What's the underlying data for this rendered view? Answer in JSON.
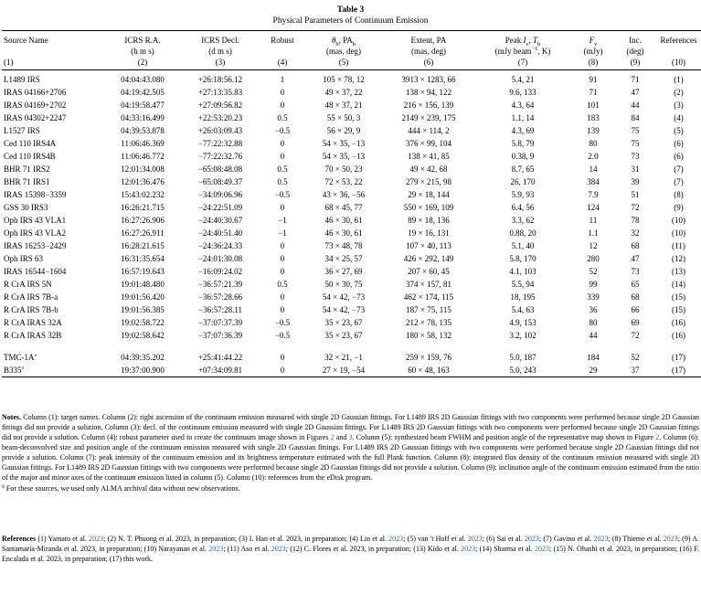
{
  "colors": {
    "link": "#2a66b0",
    "text": "#000000",
    "background": "#ffffff"
  },
  "title": {
    "label": "Table 3",
    "subtitle": "Physical Parameters of Continuum Emission"
  },
  "table": {
    "headers": [
      {
        "name": "Source Name",
        "unit": "",
        "num": "(1)"
      },
      {
        "name": "ICRS R.A.",
        "unit": "(h m s)",
        "num": "(2)"
      },
      {
        "name": "ICRS Decl.",
        "unit": "(d m s)",
        "num": "(3)"
      },
      {
        "name": "Robust",
        "unit": "",
        "num": "(4)"
      },
      {
        "name": "*θ*~b~, PA~b~",
        "unit": "(mas, deg)",
        "num": "(5)"
      },
      {
        "name": "Extent, PA",
        "unit": "(mas, deg)",
        "num": "(6)"
      },
      {
        "name": "Peak *I*~ν~, *T*~b~",
        "unit": "(mJy beam^−1^, K)",
        "num": "(7)"
      },
      {
        "name": "*F*~ν~",
        "unit": "(mJy)",
        "num": "(8)"
      },
      {
        "name": "Inc.",
        "unit": "(deg)",
        "num": "(9)"
      },
      {
        "name": "References",
        "unit": "",
        "num": "(10)"
      }
    ],
    "rows": [
      [
        "L1489 IRS",
        "04:04:43.080",
        "+26:18:56.12",
        "1",
        "105 × 78, 12",
        "3913 × 1283, 66",
        "5.4, 21",
        "91",
        "71",
        "(1)"
      ],
      [
        "IRAS 04166+2706",
        "04:19:42.505",
        "+27:13:35.83",
        "0",
        "49 × 37, 22",
        "138 × 94, 122",
        "9.6, 133",
        "71",
        "47",
        "(2)"
      ],
      [
        "IRAS 04169+2702",
        "04:19:58.477",
        "+27:09:56.82",
        "0",
        "48 × 37, 21",
        "216 × 156, 139",
        "4.3, 64",
        "101",
        "44",
        "(3)"
      ],
      [
        "IRAS 04302+2247",
        "04:33:16.499",
        "+22:53:20.23",
        "0.5",
        "55 × 50, 3",
        "2149 × 239, 175",
        "1.1, 14",
        "183",
        "84",
        "(4)"
      ],
      [
        "L1527 IRS",
        "04:39:53.878",
        "+26:03:09.43",
        "−0.5",
        "56 × 29, 9",
        "444 × 114, 2",
        "4.3, 69",
        "139",
        "75",
        "(5)"
      ],
      [
        "Ced 110 IRS4A",
        "11:06:46.369",
        "−77:22:32.88",
        "0",
        "54 × 35, −13",
        "376 × 99, 104",
        "5.8, 79",
        "80",
        "75",
        "(6)"
      ],
      [
        "Ced 110 IRS4B",
        "11:06:46.772",
        "−77:22:32.76",
        "0",
        "54 × 35, −13",
        "138 × 41, 85",
        "0.38, 9",
        "2.0",
        "73",
        "(6)"
      ],
      [
        "BHR 71 IRS2",
        "12:01:34.008",
        "−65:08:48.08",
        "0.5",
        "70 × 50, 23",
        "49 × 42, 68",
        "8.7, 65",
        "14",
        "31",
        "(7)"
      ],
      [
        "BHR 71 IRS1",
        "12:01:36.476",
        "−65:08:49.37",
        "0.5",
        "72 × 53, 22",
        "279 × 215, 98",
        "26, 170",
        "384",
        "39",
        "(7)"
      ],
      [
        "IRAS 15398−3359",
        "15:43:02.232",
        "−34:09:06.96",
        "−0.5",
        "43 × 36, −56",
        "29 × 18, 144",
        "5.9, 93",
        "7.9",
        "51",
        "(8)"
      ],
      [
        "GSS 30 IRS3",
        "16:26:21.715",
        "−24:22:51.09",
        "0",
        "68 × 45, 77",
        "550 × 169, 109",
        "6.4, 56",
        "124",
        "72",
        "(9)"
      ],
      [
        "Oph IRS 43 VLA1",
        "16:27:26.906",
        "−24:40:30.67",
        "−1",
        "46 × 30, 61",
        "89 × 18, 136",
        "3.3, 62",
        "11",
        "78",
        "(10)"
      ],
      [
        "Oph IRS 43 VLA2",
        "16:27:26.911",
        "−24:40:51.40",
        "−1",
        "46 × 30, 61",
        "19 × 16, 131",
        "0.88, 20",
        "1.1",
        "32",
        "(10)"
      ],
      [
        "IRAS 16253−2429",
        "16:28:21.615",
        "−24:36:24.33",
        "0",
        "73 × 48, 78",
        "107 × 40, 113",
        "5.1, 40",
        "12",
        "68",
        "(11)"
      ],
      [
        "Oph IRS 63",
        "16:31:35.654",
        "−24:01:30.08",
        "0",
        "34 × 25, 57",
        "426 × 292, 149",
        "5.8, 170",
        "280",
        "47",
        "(12)"
      ],
      [
        "IRAS 16544−1604",
        "16:57:19.643",
        "−16:09:24.02",
        "0",
        "36 × 27, 69",
        "207 × 60, 45",
        "4.1, 103",
        "52",
        "73",
        "(13)"
      ],
      [
        "R CrA IRS 5N",
        "19:01:48.480",
        "−36:57:21.39",
        "0.5",
        "50 × 30, 75",
        "374 × 157, 81",
        "5.5, 94",
        "99",
        "65",
        "(14)"
      ],
      [
        "R CrA IRS 7B-a",
        "19:01:56.420",
        "−36:57:28.66",
        "0",
        "54 × 42, −73",
        "462 × 174, 115",
        "18, 195",
        "339",
        "68",
        "(15)"
      ],
      [
        "R CrA IRS 7B-b",
        "19:01:56.385",
        "−36:57:28.11",
        "0",
        "54 × 42, −73",
        "187 × 75, 115",
        "5.4, 63",
        "36",
        "66",
        "(15)"
      ],
      [
        "R CrA IRAS 32A",
        "19:02:58.722",
        "−37:07:37.39",
        "−0.5",
        "35 × 23, 67",
        "212 × 78, 135",
        "4.9, 153",
        "80",
        "69",
        "(16)"
      ],
      [
        "R CrA IRAS 32B",
        "19:02:58.642",
        "−37:07:36.39",
        "−0.5",
        "35 × 23, 67",
        "180 × 58, 132",
        "3.2, 102",
        "44",
        "72",
        "(16)"
      ]
    ],
    "archival_rows": [
      [
        "TMC-1A^a^",
        "04:39:35.202",
        "+25:41:44.22",
        "0",
        "32 × 21, −1",
        "259 × 159, 76",
        "5.0, 187",
        "184",
        "52",
        "(17)"
      ],
      [
        "B335^a^",
        "19:37:00.900",
        "+07:34:09.81",
        "0",
        "27 × 19, −54",
        "60 × 48, 163",
        "5.0, 243",
        "29",
        "37",
        "(17)"
      ]
    ]
  },
  "notes": {
    "label": "Notes.",
    "segments": [
      {
        "text": " Column (1): target names. Column (2): right ascension of the continuum emission measured with single 2D Gaussian fittings. For L1489 IRS 2D Gaussian fittings with two components were performed because single 2D Gaussian fittings did not provide a solution. Column (3): decl. of the continuum emission measured with single 2D Gaussian fittings. For L1489 IRS 2D Gaussian fittings with two components were performed because single 2D Gaussian fittings did not provide a solution. Column (4): robust parameter used to create the continuum image shown in Figures "
      },
      {
        "text": "2",
        "link": true
      },
      {
        "text": " and "
      },
      {
        "text": "3",
        "link": true
      },
      {
        "text": ". Column (5): synthesized beam FWHM and position angle of the representative map shown in Figure "
      },
      {
        "text": "2",
        "link": true
      },
      {
        "text": ". Column (6): beam-deconvolved size and position angle of the continuum emission measured with single 2D Gaussian fittings. For L1489 IRS 2D Gaussian fittings with two components were performed because single 2D Gaussian fittings did not provide a solution. Column (7): peak intensity of the continuum emission and its brightness temperature estimated with the full Plank function. Column (8): integrated flux density of the continuum emission measured with single 2D Gaussian fittings. For L1489 IRS 2D Gaussian fittings with two components were performed because single 2D Gaussian fittings did not provide a solution. Column (9): inclination angle of the continuum emission estimated from the ratio of the major and minor axes of the continuum emission listed in column (5). Column (10): references from the eDisk program."
      }
    ]
  },
  "footnote": {
    "marker": "a",
    "text": " For these sources, we used only ALMA archival data without new observations."
  },
  "references": {
    "label": "References",
    "segments": [
      {
        "text": " (1) Yamato et al. "
      },
      {
        "text": "2023",
        "link": true
      },
      {
        "text": "; (2) N. T. Phuong et al. 2023, in preparation; (3) I. Han et al. 2023, in preparation; (4) Lin et al. "
      },
      {
        "text": "2023",
        "link": true
      },
      {
        "text": "; (5) van 't Hoff et al. "
      },
      {
        "text": "2023",
        "link": true
      },
      {
        "text": "; (6) Sai et al. "
      },
      {
        "text": "2023",
        "link": true
      },
      {
        "text": "; (7) Gavino et al. "
      },
      {
        "text": "2023",
        "link": true
      },
      {
        "text": "; (8) Thieme et al. "
      },
      {
        "text": "2023",
        "link": true
      },
      {
        "text": "; (9) A. Santamaría-Miranda et al. 2023, in preparation; (10) Narayanan et al. "
      },
      {
        "text": "2023",
        "link": true
      },
      {
        "text": "; (11) Aso et al. "
      },
      {
        "text": "2023",
        "link": true
      },
      {
        "text": "; (12) C. Flores et al. 2023, in preparation; (13) Kido et al. "
      },
      {
        "text": "2023",
        "link": true
      },
      {
        "text": "; (14) Sharma et al. "
      },
      {
        "text": "2023",
        "link": true
      },
      {
        "text": "; (15) N. Ohashi et al. 2023, in preparation; (16) F. Encalada et al. 2023, in preparation; (17) this work."
      }
    ]
  }
}
